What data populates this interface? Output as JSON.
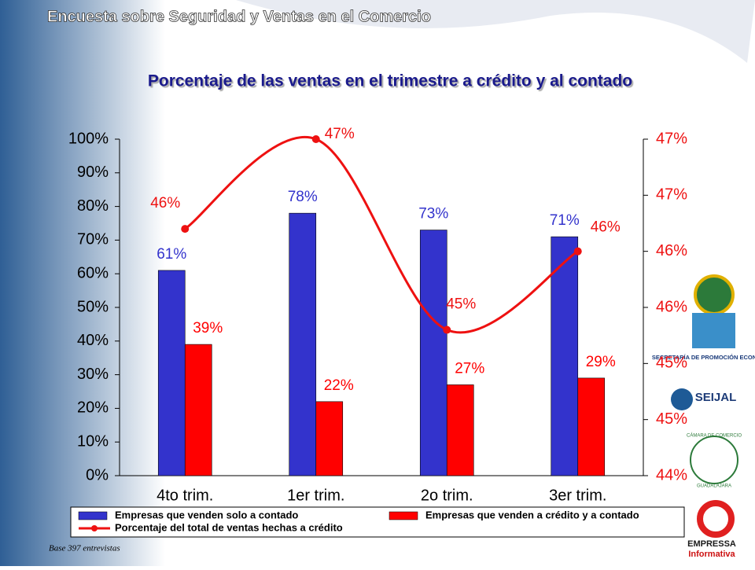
{
  "header": "Encuesta sobre Seguridad y Ventas en el Comercio",
  "footnote": "Base 397 entrevistas",
  "logos": [
    "SECRETARÍA DE PROMOCIÓN ECONÓMICA",
    "SEIJAL",
    "CÁMARA DE COMERCIO",
    "GUADALAJARA",
    "EMPRESSA",
    "Informativa"
  ],
  "chart_data": {
    "type": "bar",
    "title": "Porcentaje de las ventas en el trimestre a crédito y al contado",
    "categories": [
      "4to trim.",
      "1er trim.",
      "2o trim.",
      "3er trim."
    ],
    "series": [
      {
        "name": "Empresas que venden solo a contado",
        "color": "#3333cc",
        "values": [
          61,
          78,
          73,
          71
        ],
        "value_labels": [
          "61%",
          "78%",
          "73%",
          "71%"
        ]
      },
      {
        "name": "Empresas que venden a crédito y a contado",
        "color": "#ff0000",
        "values": [
          39,
          22,
          27,
          29
        ],
        "value_labels": [
          "39%",
          "22%",
          "27%",
          "29%"
        ]
      },
      {
        "name": "Porcentaje del total de ventas hechas a crédito",
        "color": "#ee1111",
        "type": "line",
        "axis": "y2",
        "values": [
          46.2,
          47.0,
          45.3,
          46.0
        ],
        "value_labels": [
          "46%",
          "47%",
          "45%",
          "46%"
        ]
      }
    ],
    "ylim": [
      0,
      100
    ],
    "yticks": [
      {
        "value": 0,
        "label": "0%"
      },
      {
        "value": 10,
        "label": "10%"
      },
      {
        "value": 20,
        "label": "20%"
      },
      {
        "value": 30,
        "label": "30%"
      },
      {
        "value": 40,
        "label": "40%"
      },
      {
        "value": 50,
        "label": "50%"
      },
      {
        "value": 60,
        "label": "60%"
      },
      {
        "value": 70,
        "label": "70%"
      },
      {
        "value": 80,
        "label": "80%"
      },
      {
        "value": 90,
        "label": "90%"
      },
      {
        "value": 100,
        "label": "100%"
      }
    ],
    "y2lim": [
      44,
      47
    ],
    "y2ticks": [
      {
        "value": 44,
        "label": "44%"
      },
      {
        "value": 44.5,
        "label": "45%"
      },
      {
        "value": 45,
        "label": "45%"
      },
      {
        "value": 45.5,
        "label": "46%"
      },
      {
        "value": 46,
        "label": "46%"
      },
      {
        "value": 46.5,
        "label": "47%"
      },
      {
        "value": 47,
        "label": "47%"
      }
    ],
    "legend": "bottom"
  }
}
